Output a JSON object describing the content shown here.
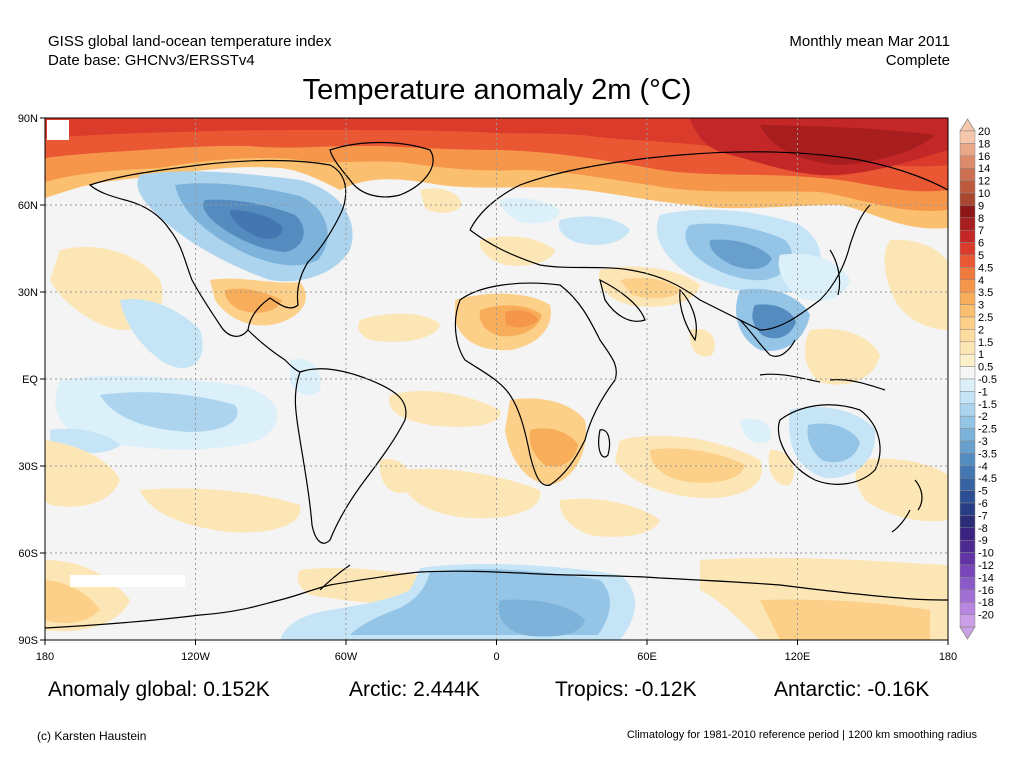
{
  "header": {
    "left_line1": "GISS global land-ocean temperature index",
    "left_line2": "Date base: GHCNv3/ERSSTv4",
    "right_line1": "Monthly mean Mar 2011",
    "right_line2": "Complete"
  },
  "title": "Temperature anomaly 2m (°C)",
  "lat_labels": [
    "90N",
    "60N",
    "30N",
    "EQ",
    "30S",
    "60S",
    "90S"
  ],
  "lon_labels": [
    "180",
    "120W",
    "60W",
    "0",
    "60E",
    "120E",
    "180"
  ],
  "colorbar": {
    "labels": [
      "20",
      "18",
      "16",
      "14",
      "12",
      "10",
      "9",
      "8",
      "7",
      "6",
      "5",
      "4.5",
      "4",
      "3.5",
      "3",
      "2.5",
      "2",
      "1.5",
      "1",
      "0.5",
      "-0.5",
      "-1",
      "-1.5",
      "-2",
      "-2.5",
      "-3",
      "-3.5",
      "-4",
      "-4.5",
      "-5",
      "-6",
      "-7",
      "-8",
      "-9",
      "-10",
      "-12",
      "-14",
      "-16",
      "-18",
      "-20"
    ],
    "colors": [
      "#f6c7ad",
      "#eaa88a",
      "#dc8b6b",
      "#cd6f52",
      "#bd5a3e",
      "#aa4530",
      "#8d1717",
      "#a81d1d",
      "#c42727",
      "#db3b2a",
      "#ea5733",
      "#f07a3e",
      "#f5964b",
      "#f8ad5a",
      "#fbc06f",
      "#fcd088",
      "#fddc9f",
      "#fde6b6",
      "#fbefcc",
      "#f5f5f5",
      "#dcf0fa",
      "#c5e4f6",
      "#acd4ee",
      "#94c4e6",
      "#7db2da",
      "#689fcd",
      "#548cc0",
      "#4477b2",
      "#3863a3",
      "#2c4f94",
      "#273e86",
      "#2a2c78",
      "#3a2280",
      "#4d2a92",
      "#6234a6",
      "#7846b8",
      "#8c5ac8",
      "#a26fd4",
      "#b786de",
      "#cba0e6"
    ]
  },
  "stats": {
    "global": "Anomaly global: 0.152K",
    "arctic": "Arctic: 2.444K",
    "tropics": "Tropics: -0.12K",
    "antarctic": "Antarctic: -0.16K"
  },
  "footer": {
    "credit": "(c) Karsten Haustein",
    "note": "Climatology for 1981-2010 reference period | 1200 km smoothing radius"
  }
}
